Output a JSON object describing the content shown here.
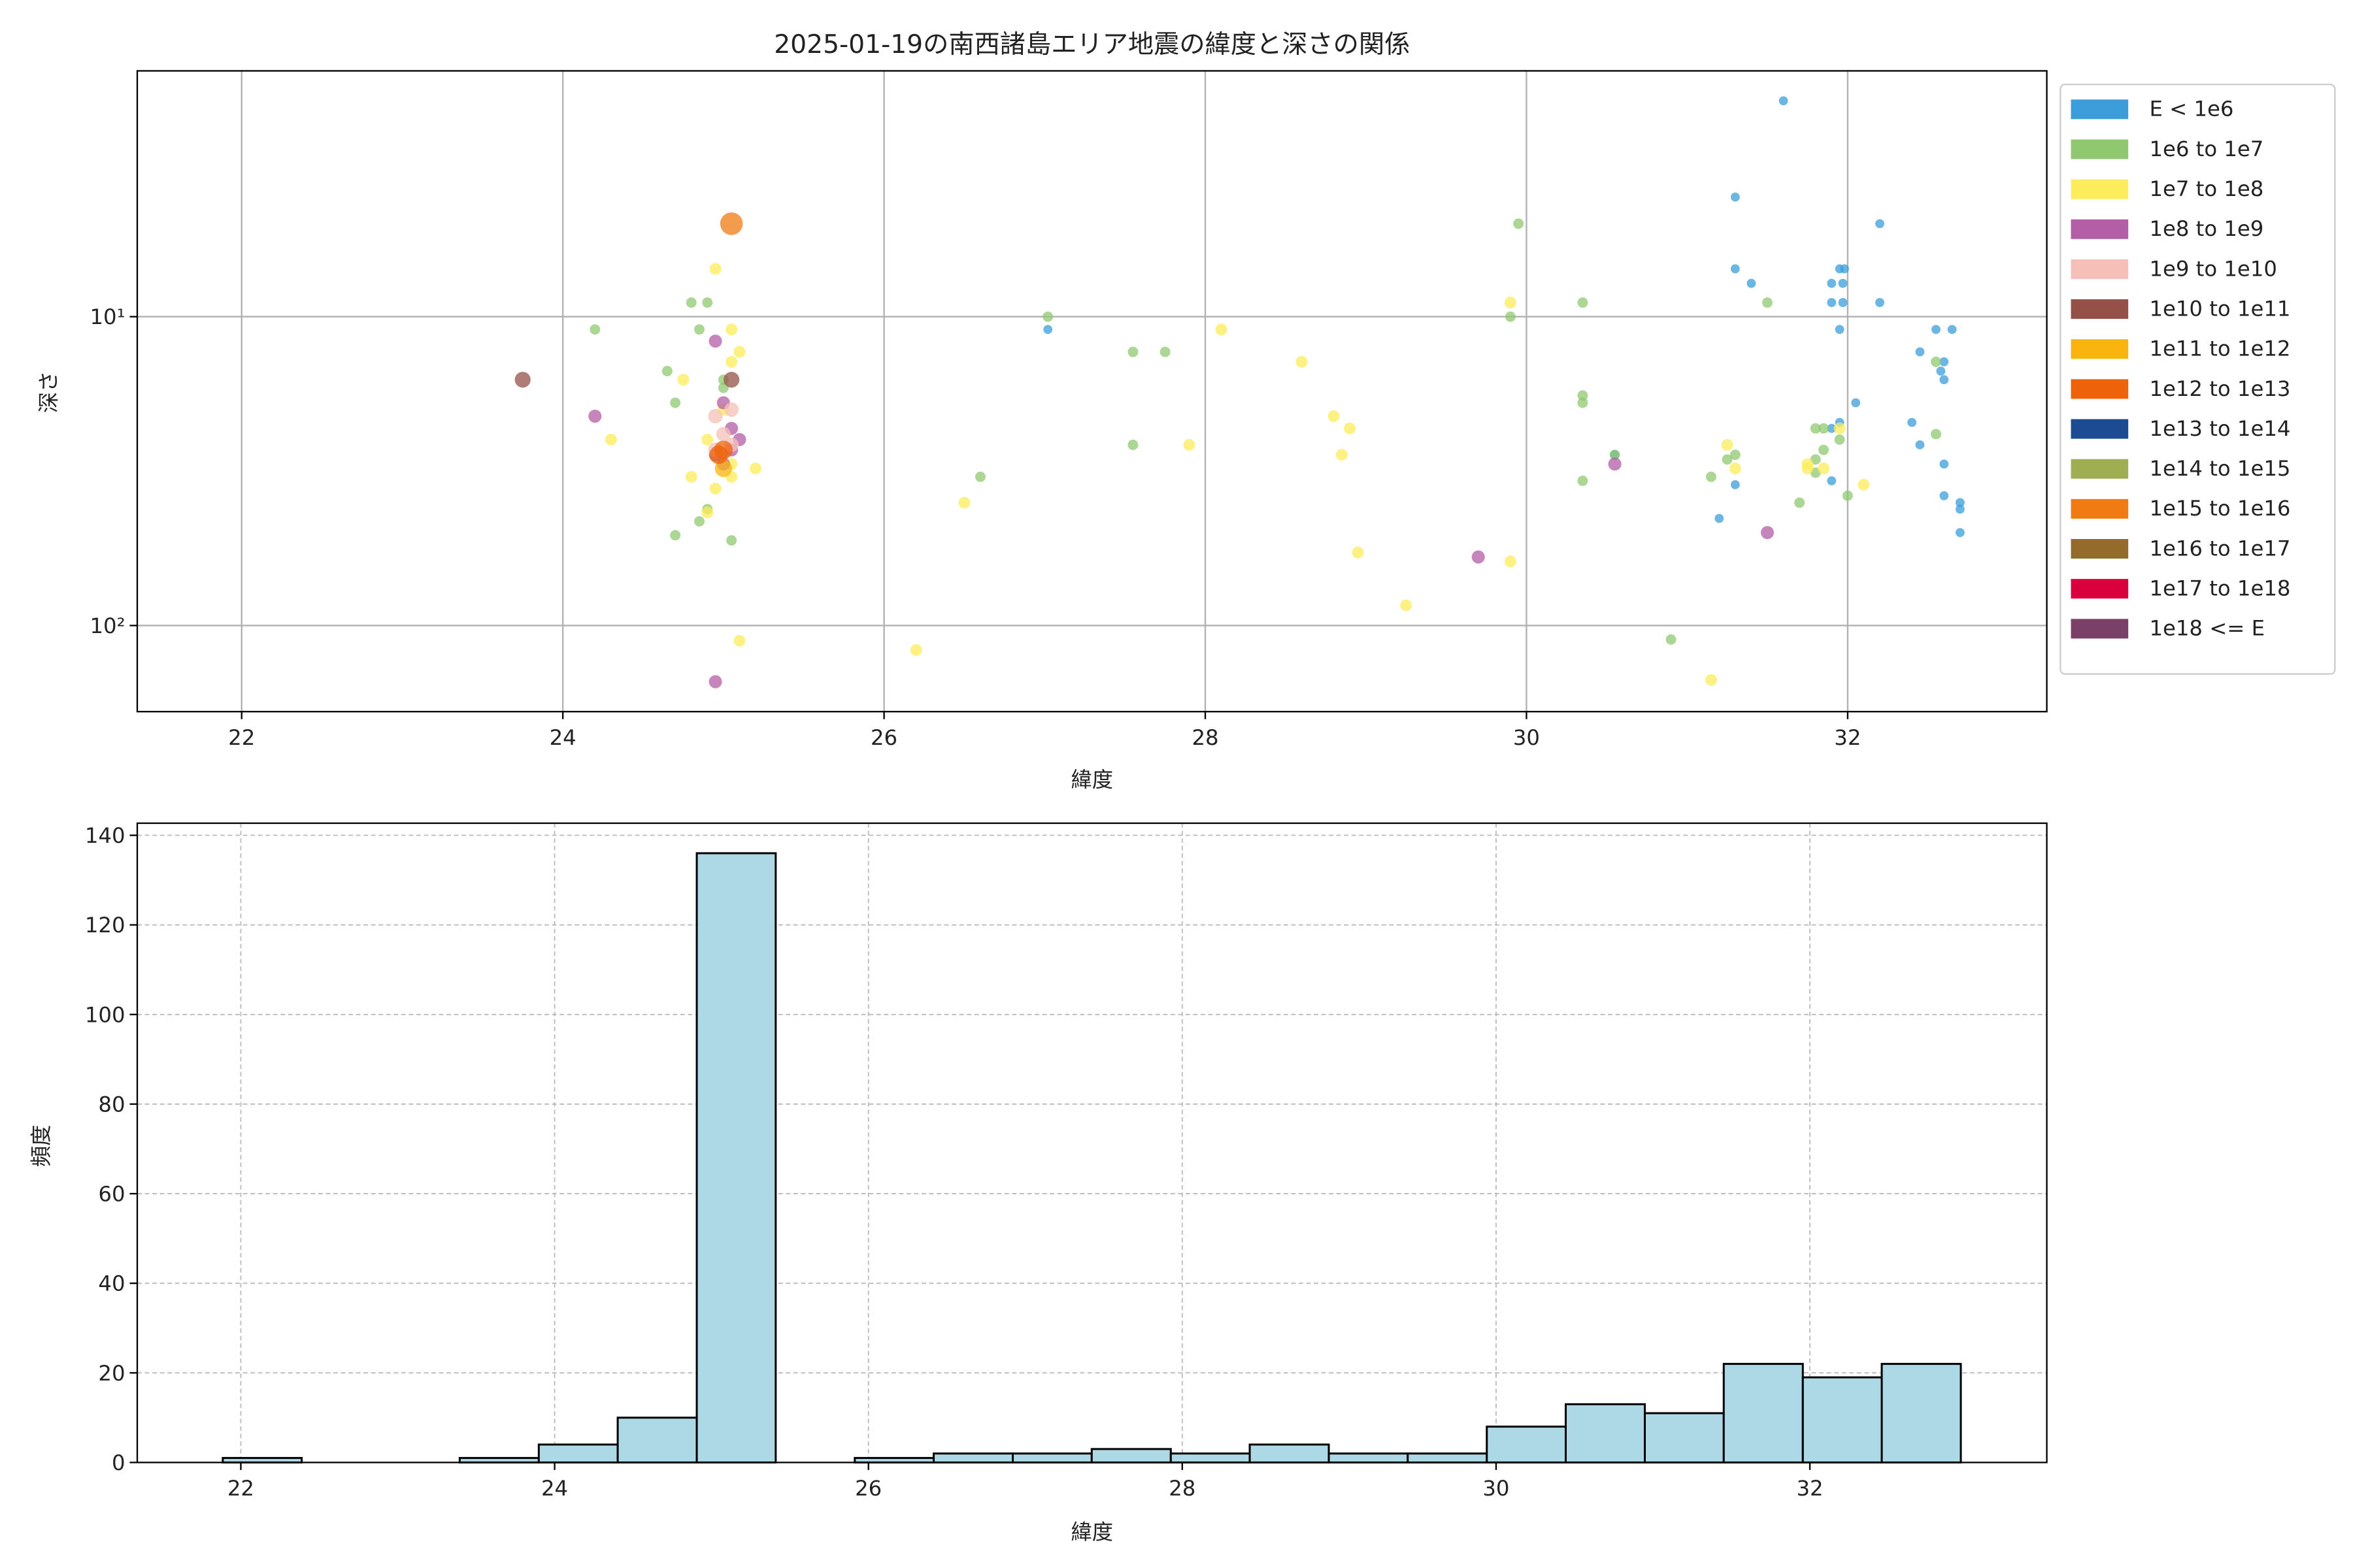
{
  "chart_data": [
    {
      "type": "scatter",
      "title": "2025-01-19の南西諸島エリア地震の緯度と深さの関係",
      "xlabel": "緯度",
      "ylabel": "深さ",
      "xlim": [
        21.35,
        33.24
      ],
      "xticks": [
        22,
        24,
        26,
        28,
        30,
        32
      ],
      "ylim": [
        1.6,
        190
      ],
      "yscale": "log",
      "y_inverted": true,
      "yticks": [
        {
          "value": 10,
          "label": "10¹"
        },
        {
          "value": 100,
          "label": "10²"
        }
      ],
      "grid": true,
      "legend": "outside right",
      "series": [
        {
          "name": "E < 1e6",
          "color": "#3b9edb",
          "x": [
            31.6,
            31.3,
            32.2,
            31.3,
            31.4,
            31.95,
            31.98,
            31.9,
            31.97,
            31.9,
            31.97,
            32.2,
            31.95,
            32.55,
            32.65,
            32.45,
            32.6,
            32.58,
            32.6,
            32.05,
            32.4,
            32.45,
            31.95,
            31.9,
            32.6,
            30.55,
            31.3,
            31.9,
            32.6,
            32.7,
            32.7,
            32.7,
            31.2,
            27.02
          ],
          "values": [
            2.0,
            4.1,
            5.0,
            7.0,
            7.8,
            7.0,
            7.0,
            7.8,
            7.8,
            9,
            9,
            9,
            11,
            11,
            11,
            13,
            14,
            15,
            16,
            19,
            22,
            26,
            22,
            23,
            30,
            28,
            35,
            34,
            38,
            42,
            40,
            50,
            45,
            11
          ]
        },
        {
          "name": "1e6 to 1e7",
          "color": "#8fc86f",
          "x": [
            24.2,
            24.65,
            24.7,
            24.8,
            24.9,
            24.85,
            25.0,
            25.0,
            24.85,
            24.7,
            25.05,
            24.9,
            26.6,
            27.02,
            27.55,
            27.75,
            27.55,
            29.95,
            29.9,
            30.35,
            30.35,
            30.35,
            30.35,
            30.55,
            31.15,
            31.3,
            31.5,
            31.25,
            31.7,
            31.8,
            31.85,
            31.95,
            31.8,
            32.0,
            31.85,
            32.55,
            32.55,
            30.9,
            31.8
          ],
          "values": [
            11,
            15,
            19,
            9,
            9,
            11,
            17,
            16,
            46,
            51,
            53,
            42,
            33,
            10,
            13,
            13,
            26,
            5,
            10,
            9,
            18,
            19,
            34,
            28,
            33,
            28,
            9,
            29,
            40,
            23,
            23,
            25,
            29,
            38,
            27,
            14,
            24,
            111,
            32
          ]
        },
        {
          "name": "1e7 to 1e8",
          "color": "#fdec5b",
          "x": [
            24.3,
            24.8,
            24.75,
            24.95,
            25.05,
            25.1,
            25.05,
            24.9,
            25.0,
            25.05,
            24.95,
            25.05,
            25.2,
            24.9,
            25.1,
            26.5,
            26.2,
            27.9,
            28.1,
            28.6,
            28.8,
            28.9,
            28.85,
            28.95,
            29.25,
            29.9,
            29.9,
            31.15,
            31.25,
            31.3,
            31.75,
            31.85,
            31.95,
            32.1,
            31.75
          ],
          "values": [
            25,
            33,
            16,
            7,
            11,
            13,
            14,
            25,
            20,
            30,
            36,
            33,
            31,
            43,
            112,
            40,
            120,
            26,
            11,
            14,
            21,
            23,
            28,
            58,
            86,
            9,
            62,
            150,
            26,
            31,
            30,
            31,
            23,
            35,
            31
          ]
        },
        {
          "name": "1e8 to 1e9",
          "color": "#b35ea6",
          "x": [
            24.95,
            24.2,
            25.0,
            25.05,
            25.1,
            24.95,
            25.0,
            25.05,
            30.55,
            29.7,
            31.5,
            24.95
          ],
          "values": [
            12,
            21,
            19,
            23,
            25,
            28,
            30,
            27,
            30,
            60,
            50,
            152
          ]
        },
        {
          "name": "1e9 to 1e10",
          "color": "#f6c0b8",
          "x": [
            24.95,
            25.05,
            25.0,
            24.95,
            25.05
          ],
          "values": [
            21,
            20,
            24,
            27,
            26
          ]
        },
        {
          "name": "1e10 to 1e11",
          "color": "#955048",
          "x": [
            23.75,
            25.05
          ],
          "values": [
            16,
            16
          ]
        },
        {
          "name": "1e11 to 1e12",
          "color": "#f9b40e",
          "x": [
            25.0
          ],
          "values": [
            31
          ]
        },
        {
          "name": "1e12 to 1e13",
          "color": "#ee6309",
          "x": [
            24.97,
            25.0
          ],
          "values": [
            28,
            27
          ]
        },
        {
          "name": "1e13 to 1e14",
          "color": "#1c4b94",
          "x": [],
          "values": []
        },
        {
          "name": "1e14 to 1e15",
          "color": "#9eae50",
          "x": [],
          "values": []
        },
        {
          "name": "1e15 to 1e16",
          "color": "#f07b13",
          "x": [
            25.05
          ],
          "values": [
            5.0
          ]
        },
        {
          "name": "1e16 to 1e17",
          "color": "#946b2b",
          "x": [],
          "values": []
        },
        {
          "name": "1e17 to 1e18",
          "color": "#d9003d",
          "x": [],
          "values": []
        },
        {
          "name": "1e18 <= E",
          "color": "#7b4068",
          "x": [],
          "values": []
        }
      ]
    },
    {
      "type": "histogram",
      "xlabel": "緯度",
      "ylabel": "頻度",
      "color": "#add8e6",
      "bins": [
        21.885,
        22.388,
        22.892,
        23.395,
        23.899,
        24.402,
        24.906,
        25.409,
        25.913,
        26.416,
        26.92,
        27.423,
        27.927,
        28.43,
        28.934,
        29.437,
        29.941,
        30.444,
        30.948,
        31.451,
        31.955,
        32.458,
        32.962
      ],
      "values": [
        1,
        0,
        0,
        1,
        4,
        10,
        136,
        0,
        1,
        2,
        2,
        3,
        2,
        4,
        2,
        2,
        8,
        13,
        11,
        22,
        19,
        22
      ],
      "xlim": [
        21.34,
        33.51
      ],
      "xticks": [
        22,
        24,
        26,
        28,
        30,
        32
      ],
      "ylim": [
        0,
        142.7
      ],
      "yticks": [
        0,
        20,
        40,
        60,
        80,
        100,
        120,
        140
      ],
      "grid": true
    }
  ]
}
